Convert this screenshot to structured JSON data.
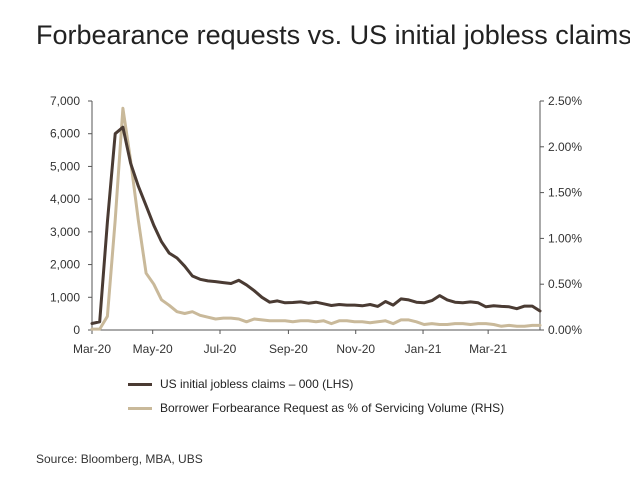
{
  "chart_data": {
    "type": "line",
    "title": "Forbearance requests vs. US initial jobless claims",
    "x": [
      "2020-03-07",
      "2020-03-14",
      "2020-03-21",
      "2020-03-28",
      "2020-04-04",
      "2020-04-11",
      "2020-04-18",
      "2020-04-25",
      "2020-05-02",
      "2020-05-09",
      "2020-05-16",
      "2020-05-23",
      "2020-05-30",
      "2020-06-06",
      "2020-06-13",
      "2020-06-20",
      "2020-06-27",
      "2020-07-04",
      "2020-07-11",
      "2020-07-18",
      "2020-07-25",
      "2020-08-01",
      "2020-08-08",
      "2020-08-15",
      "2020-08-22",
      "2020-08-29",
      "2020-09-05",
      "2020-09-12",
      "2020-09-19",
      "2020-09-26",
      "2020-10-03",
      "2020-10-10",
      "2020-10-17",
      "2020-10-24",
      "2020-10-31",
      "2020-11-07",
      "2020-11-14",
      "2020-11-21",
      "2020-11-28",
      "2020-12-05",
      "2020-12-12",
      "2020-12-19",
      "2020-12-26",
      "2021-01-02",
      "2021-01-09",
      "2021-01-16",
      "2021-01-23",
      "2021-01-30",
      "2021-02-06",
      "2021-02-13",
      "2021-02-20",
      "2021-02-27",
      "2021-03-06",
      "2021-03-13",
      "2021-03-20",
      "2021-03-27",
      "2021-04-03",
      "2021-04-10",
      "2021-04-17"
    ],
    "series": [
      {
        "name": "US initial jobless claims – 000 (LHS)",
        "axis": "left",
        "color": "#4a3b33",
        "values": [
          200,
          250,
          3300,
          6000,
          6200,
          5100,
          4400,
          3800,
          3200,
          2700,
          2350,
          2200,
          1950,
          1650,
          1550,
          1500,
          1480,
          1450,
          1420,
          1520,
          1380,
          1200,
          1000,
          850,
          890,
          830,
          840,
          860,
          820,
          850,
          800,
          750,
          780,
          760,
          760,
          740,
          780,
          720,
          870,
          760,
          950,
          920,
          850,
          830,
          900,
          1050,
          920,
          850,
          830,
          860,
          830,
          710,
          740,
          720,
          710,
          650,
          730,
          730,
          580
        ]
      },
      {
        "name": "Borrower Forbearance Request as % of Servicing Volume (RHS)",
        "axis": "right",
        "color": "#c9b99a",
        "values": [
          0.01,
          0.01,
          0.15,
          1.2,
          2.42,
          1.85,
          1.2,
          0.62,
          0.5,
          0.33,
          0.27,
          0.2,
          0.18,
          0.2,
          0.16,
          0.14,
          0.12,
          0.13,
          0.13,
          0.12,
          0.09,
          0.12,
          0.11,
          0.1,
          0.1,
          0.1,
          0.09,
          0.1,
          0.1,
          0.09,
          0.1,
          0.07,
          0.1,
          0.1,
          0.09,
          0.09,
          0.08,
          0.09,
          0.1,
          0.07,
          0.11,
          0.11,
          0.09,
          0.06,
          0.07,
          0.06,
          0.06,
          0.07,
          0.07,
          0.06,
          0.07,
          0.07,
          0.06,
          0.04,
          0.05,
          0.04,
          0.04,
          0.05,
          0.05
        ]
      }
    ],
    "x_ticks": [
      "Mar-20",
      "May-20",
      "Jul-20",
      "Sep-20",
      "Nov-20",
      "Jan-21",
      "Mar-21"
    ],
    "y_left": {
      "ticks": [
        "0",
        "1,000",
        "2,000",
        "3,000",
        "4,000",
        "5,000",
        "6,000",
        "7,000"
      ],
      "range": [
        0,
        7000
      ]
    },
    "y_right": {
      "ticks": [
        "0.00%",
        "0.50%",
        "1.00%",
        "1.50%",
        "2.00%",
        "2.50%"
      ],
      "range": [
        0,
        2.5
      ]
    },
    "grid": false,
    "legend_position": "bottom-left"
  },
  "source": "Source: Bloomberg, MBA, UBS"
}
